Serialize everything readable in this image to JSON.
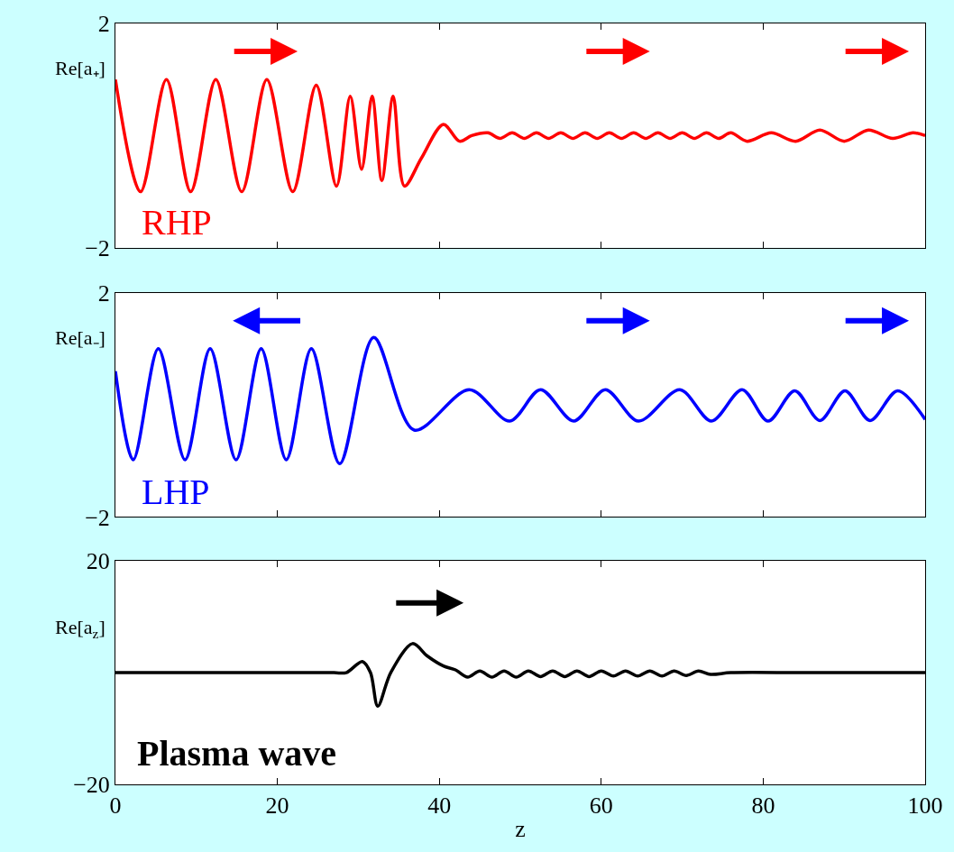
{
  "chart_data": [
    {
      "type": "line",
      "ylabel": "Re[a₊]",
      "xlim": [
        0,
        100
      ],
      "xticks": [
        0,
        20,
        40,
        60,
        80,
        100
      ],
      "ylim": [
        -2,
        2
      ],
      "yticks": [
        -2,
        2
      ],
      "tick_labels": "y",
      "annotations": [
        "RHP"
      ],
      "x": [
        0,
        3.1,
        6.3,
        9.3,
        12.4,
        15.6,
        18.7,
        21.9,
        24.8,
        27.3,
        29.0,
        30.4,
        31.7,
        32.9,
        34.3,
        35.7,
        37.8,
        40.5,
        42.5,
        44,
        46,
        47.5,
        49,
        50.5,
        52,
        53.5,
        55,
        56.5,
        58,
        59.5,
        61,
        62.5,
        64,
        65.5,
        67,
        68.5,
        70,
        71.5,
        73,
        74.5,
        76,
        78,
        81,
        84,
        87,
        90,
        93,
        96,
        98.5,
        100
      ],
      "series": [
        {
          "color": "#ff0000",
          "values": [
            1.0,
            -1.0,
            1.0,
            -1.0,
            1.0,
            -1.0,
            1.0,
            -1.0,
            0.9,
            -0.9,
            0.7,
            -0.6,
            0.7,
            -0.8,
            0.7,
            -0.9,
            -0.4,
            0.2,
            -0.1,
            0.0,
            0.05,
            -0.05,
            0.05,
            -0.05,
            0.05,
            -0.05,
            0.05,
            -0.05,
            0.05,
            -0.05,
            0.05,
            -0.05,
            0.05,
            -0.05,
            0.05,
            -0.05,
            0.05,
            -0.05,
            0.05,
            -0.05,
            0.05,
            -0.1,
            0.05,
            -0.1,
            0.1,
            -0.1,
            0.1,
            -0.05,
            0.05,
            0.0
          ]
        }
      ]
    },
    {
      "type": "line",
      "ylabel": "Re[a₋]",
      "xlim": [
        0,
        100
      ],
      "xticks": [
        0,
        20,
        40,
        60,
        80,
        100
      ],
      "ylim": [
        -2,
        2
      ],
      "yticks": [
        -2,
        2
      ],
      "tick_labels": "y",
      "annotations": [
        "LHP"
      ],
      "x": [
        0,
        2.2,
        5.3,
        8.6,
        11.7,
        14.9,
        18.0,
        21.1,
        24.2,
        27.7,
        31.9,
        36.9,
        43.7,
        48.7,
        52.5,
        56.6,
        60.5,
        64.6,
        69.7,
        73.6,
        77.4,
        80.6,
        83.9,
        87.0,
        90.1,
        93.2,
        96.6,
        100
      ],
      "series": [
        {
          "color": "#0000ff",
          "values": [
            0.6,
            -0.98,
            1.0,
            -0.98,
            1.0,
            -0.98,
            1.0,
            -0.98,
            1.0,
            -1.05,
            1.2,
            -0.45,
            0.27,
            -0.29,
            0.27,
            -0.29,
            0.27,
            -0.29,
            0.27,
            -0.29,
            0.27,
            -0.29,
            0.25,
            -0.28,
            0.25,
            -0.28,
            0.25,
            -0.26
          ]
        }
      ]
    },
    {
      "type": "line",
      "ylabel": "Re[a$_{z}$]",
      "xlabel": "z",
      "xlim": [
        0,
        100
      ],
      "xticks": [
        0,
        20,
        40,
        60,
        80,
        100
      ],
      "ylim": [
        -20,
        20
      ],
      "yticks": [
        -20,
        20
      ],
      "annotations": [
        "Plasma wave"
      ],
      "x": [
        0,
        10,
        20,
        27,
        28.5,
        30.5,
        31.5,
        32.4,
        34,
        36.7,
        38.5,
        40.5,
        42,
        43.5,
        45,
        46.5,
        48,
        49.5,
        51,
        52.5,
        54,
        55.5,
        57,
        58.5,
        60,
        61.5,
        63,
        64.5,
        66,
        67.5,
        69,
        70.5,
        72,
        73.5,
        76,
        85,
        100
      ],
      "series": [
        {
          "color": "#000000",
          "values": [
            0,
            0,
            0,
            0,
            0,
            2.0,
            0,
            -6.0,
            0,
            5.2,
            3.0,
            1.2,
            0.5,
            -0.8,
            0.3,
            -0.8,
            0.3,
            -0.8,
            0.3,
            -0.7,
            0.3,
            -0.7,
            0.3,
            -0.7,
            0.3,
            -0.6,
            0.3,
            -0.6,
            0.3,
            -0.6,
            0.3,
            -0.5,
            0.3,
            -0.3,
            0,
            0,
            0
          ]
        }
      ]
    }
  ]
}
